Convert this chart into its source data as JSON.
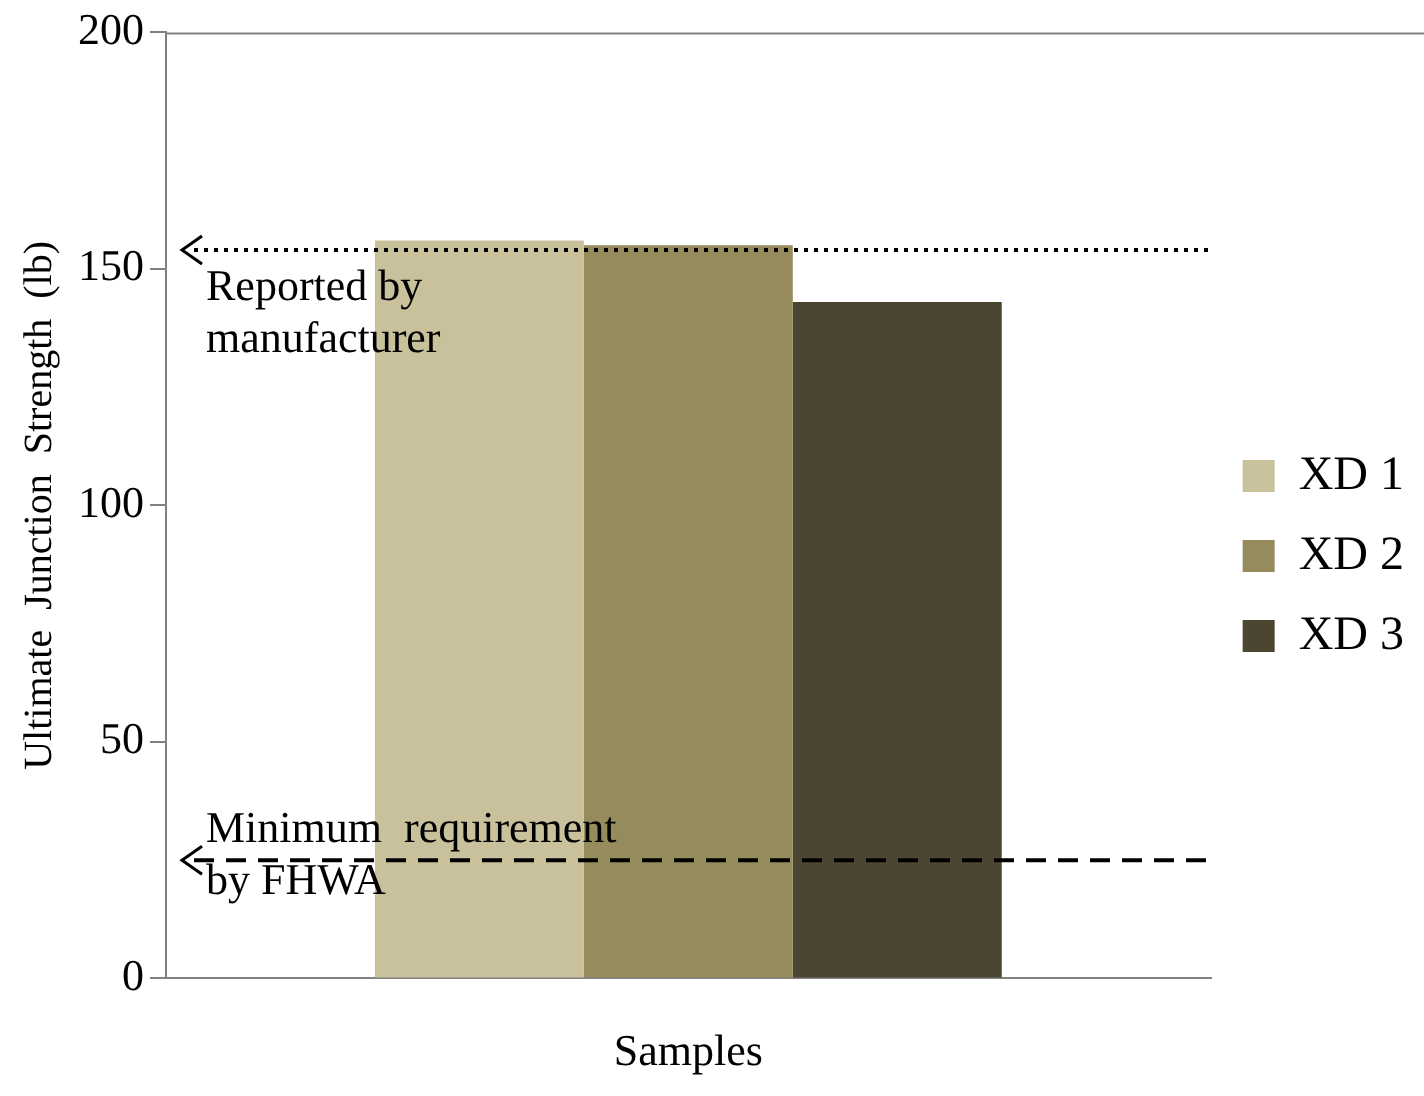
{
  "chart_data": {
    "type": "bar",
    "xlabel": "Samples",
    "ylabel": "Ultimate  Junction  Strength  (lb)",
    "categories": [
      null
    ],
    "series": [
      {
        "name": "XD 1",
        "color": "#c9c09c",
        "values": [
          156
        ]
      },
      {
        "name": "XD 2",
        "color": "#958b5c",
        "values": [
          155
        ]
      },
      {
        "name": "XD 3",
        "color": "#4b4532",
        "values": [
          143
        ]
      }
    ],
    "ylim": [
      0,
      200
    ],
    "yticks": [
      0,
      50,
      100,
      150,
      200
    ],
    "grid": false,
    "legend": "right",
    "ref_lines": [
      {
        "axis": "y",
        "value": 154,
        "label": "Reported by manufacturer",
        "line_style": "dotted",
        "color": "#000000"
      },
      {
        "axis": "y",
        "value": 25,
        "label": "Minimum  requirement by FHWA",
        "line_style": "dashed",
        "color": "#000000"
      }
    ]
  }
}
